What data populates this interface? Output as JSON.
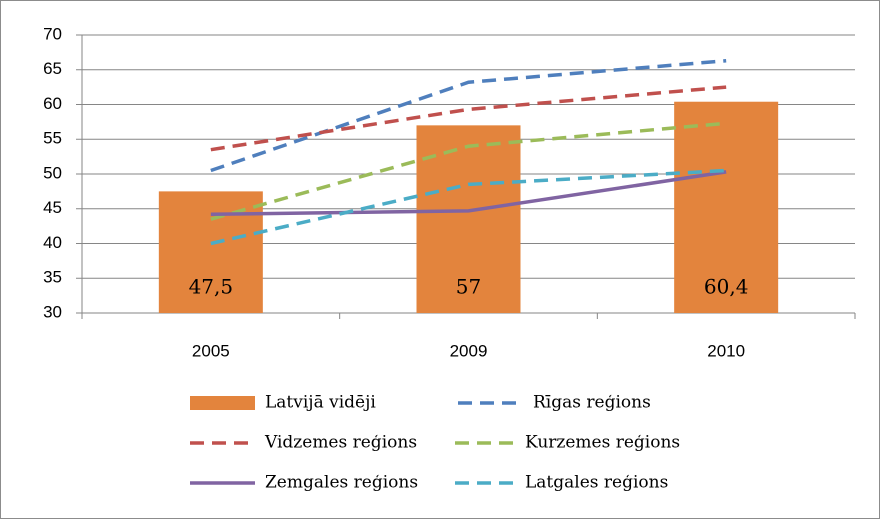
{
  "chart_data": {
    "type": "bar",
    "categories": [
      "2005",
      "2009",
      "2010"
    ],
    "ylim": [
      30,
      70
    ],
    "yticks": [
      30,
      35,
      40,
      45,
      50,
      55,
      60,
      65,
      70
    ],
    "grid": true,
    "series": [
      {
        "name": "Latvijā  vidēji",
        "type": "bar",
        "color": "#e3843d",
        "values": [
          47.5,
          57,
          60.4
        ],
        "value_labels": [
          "47,5",
          "57",
          "60,4"
        ]
      },
      {
        "name": "Rīgas reģions",
        "type": "line",
        "style": "dashed",
        "color": "#4f7fbd",
        "values": [
          50.5,
          63.2,
          66.3
        ]
      },
      {
        "name": "Vidzemes reģions",
        "type": "line",
        "style": "dashed",
        "color": "#c0504d",
        "values": [
          53.5,
          59.3,
          62.5
        ]
      },
      {
        "name": "Kurzemes reģions",
        "type": "line",
        "style": "dashed",
        "color": "#9bbb59",
        "values": [
          43.5,
          54,
          57.3
        ]
      },
      {
        "name": "Zemgales reģions",
        "type": "line",
        "style": "solid",
        "color": "#8064a2",
        "values": [
          44.2,
          44.7,
          50.3
        ]
      },
      {
        "name": "Latgales reģions",
        "type": "line",
        "style": "dashed",
        "color": "#4bacc6",
        "values": [
          40,
          48.5,
          50.5
        ]
      }
    ]
  }
}
